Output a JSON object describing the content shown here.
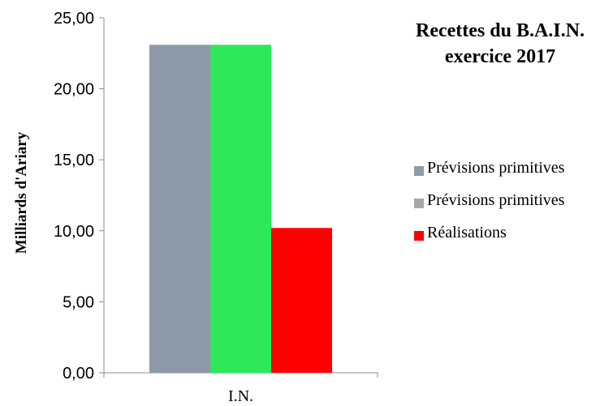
{
  "title": {
    "line1": "Recettes du B.A.I.N.",
    "line2": "exercice 2017"
  },
  "chart_data": {
    "type": "bar",
    "categories": [
      "I.N."
    ],
    "ylabel": "Milliards  d'Ariary",
    "xlabel": "",
    "ylim": [
      0,
      25
    ],
    "yticks": [
      "0,00",
      "5,00",
      "10,00",
      "15,00",
      "20,00",
      "25,00"
    ],
    "ytick_values": [
      0,
      5,
      10,
      15,
      20,
      25
    ],
    "grid": false,
    "legend_position": "right",
    "series": [
      {
        "name": "Prévisions primitives",
        "values": [
          23.1
        ],
        "color": "#8E9AA8",
        "legend_color": "#8E9AA8"
      },
      {
        "name": "Prévisions primitives",
        "values": [
          23.1
        ],
        "color": "#2EE85A",
        "legend_color": "#A6A6A6"
      },
      {
        "name": "Réalisations",
        "values": [
          10.2
        ],
        "color": "#FF0000",
        "legend_color": "#FF0000"
      }
    ]
  }
}
